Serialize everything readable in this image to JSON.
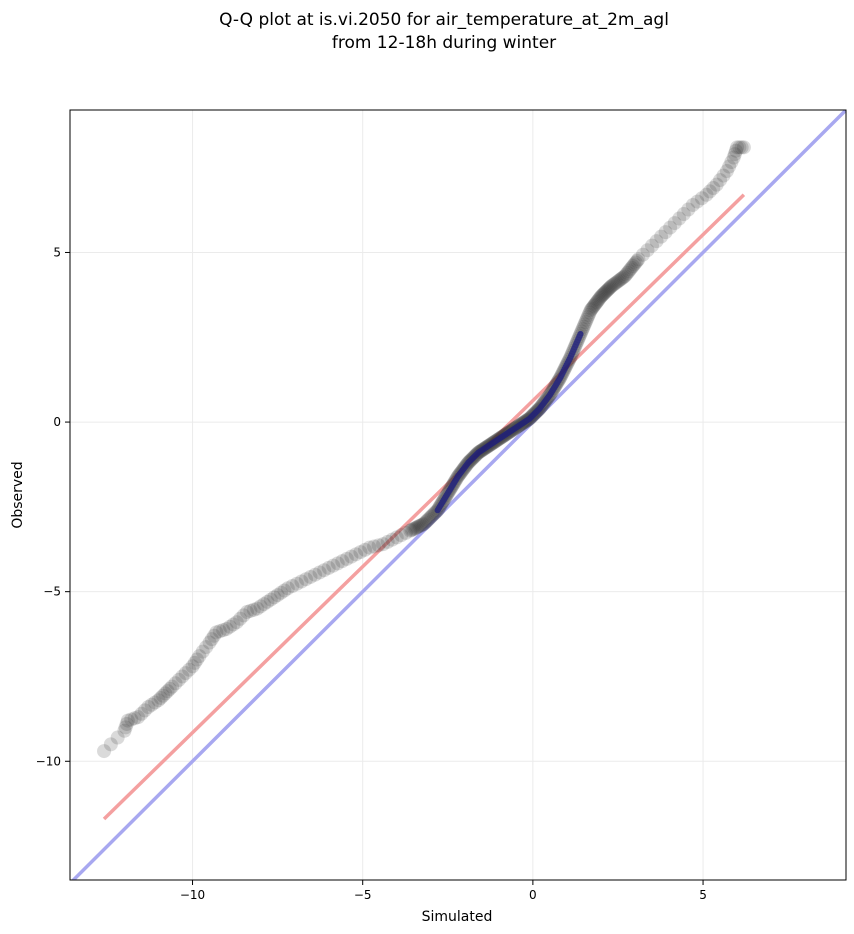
{
  "chart_data": {
    "type": "scatter",
    "title": [
      "Q-Q plot at is.vi.2050 for air_temperature_at_2m_agl",
      "from 12-18h during winter"
    ],
    "xlabel": "Simulated",
    "ylabel": "Observed",
    "xlim": [
      -13.6,
      9.2
    ],
    "ylim": [
      -13.5,
      9.2
    ],
    "xticks": [
      -10,
      -5,
      0,
      5
    ],
    "yticks": [
      -10,
      -5,
      0,
      5
    ],
    "xtick_labels": [
      "−10",
      "−5",
      "0",
      "5"
    ],
    "ytick_labels": [
      "−10",
      "−5",
      "0",
      "5"
    ],
    "grid": true,
    "colors": {
      "points": "#333333",
      "fit_line": "#f4a0a0",
      "identity_line": "#a8a8f0",
      "dense_overlay": "#1a1a80"
    },
    "series": [
      {
        "kind": "points",
        "x": [
          -12.6,
          -12.0,
          -11.9,
          -11.6,
          -11.3,
          -11.0,
          -10.8,
          -10.6,
          -10.3,
          -10.0,
          -9.8,
          -9.5,
          -9.3,
          -9.0,
          -8.7,
          -8.4,
          -8.1,
          -7.8,
          -7.5,
          -7.2,
          -6.8,
          -6.4,
          -6.0,
          -5.6,
          -5.2,
          -4.8,
          -4.4,
          -4.0,
          -3.6,
          -3.2,
          -2.8,
          -2.5,
          -2.2,
          -1.9,
          -1.6,
          -1.3,
          -1.0,
          -0.7,
          -0.4,
          -0.1,
          0.2,
          0.5,
          0.8,
          1.1,
          1.4,
          1.7,
          2.0,
          2.3,
          2.7,
          3.1,
          3.5,
          3.9,
          4.3,
          4.7,
          5.1,
          5.4,
          5.7,
          5.9,
          6.0,
          6.2
        ],
        "y": [
          -9.7,
          -9.1,
          -8.8,
          -8.7,
          -8.4,
          -8.2,
          -8.0,
          -7.8,
          -7.5,
          -7.2,
          -6.9,
          -6.5,
          -6.2,
          -6.1,
          -5.9,
          -5.6,
          -5.5,
          -5.3,
          -5.1,
          -4.9,
          -4.7,
          -4.5,
          -4.3,
          -4.1,
          -3.9,
          -3.7,
          -3.6,
          -3.4,
          -3.2,
          -3.0,
          -2.6,
          -2.1,
          -1.6,
          -1.2,
          -0.9,
          -0.7,
          -0.5,
          -0.3,
          -0.1,
          0.1,
          0.4,
          0.8,
          1.3,
          1.9,
          2.6,
          3.3,
          3.7,
          4.0,
          4.3,
          4.8,
          5.2,
          5.6,
          6.0,
          6.4,
          6.7,
          7.0,
          7.4,
          7.8,
          8.1,
          8.1
        ]
      },
      {
        "kind": "fit_line",
        "x": [
          -12.6,
          6.2
        ],
        "y": [
          -11.7,
          6.7
        ]
      },
      {
        "kind": "identity_line",
        "x": [
          -13.6,
          9.2
        ],
        "y": [
          -13.6,
          9.2
        ]
      }
    ]
  }
}
